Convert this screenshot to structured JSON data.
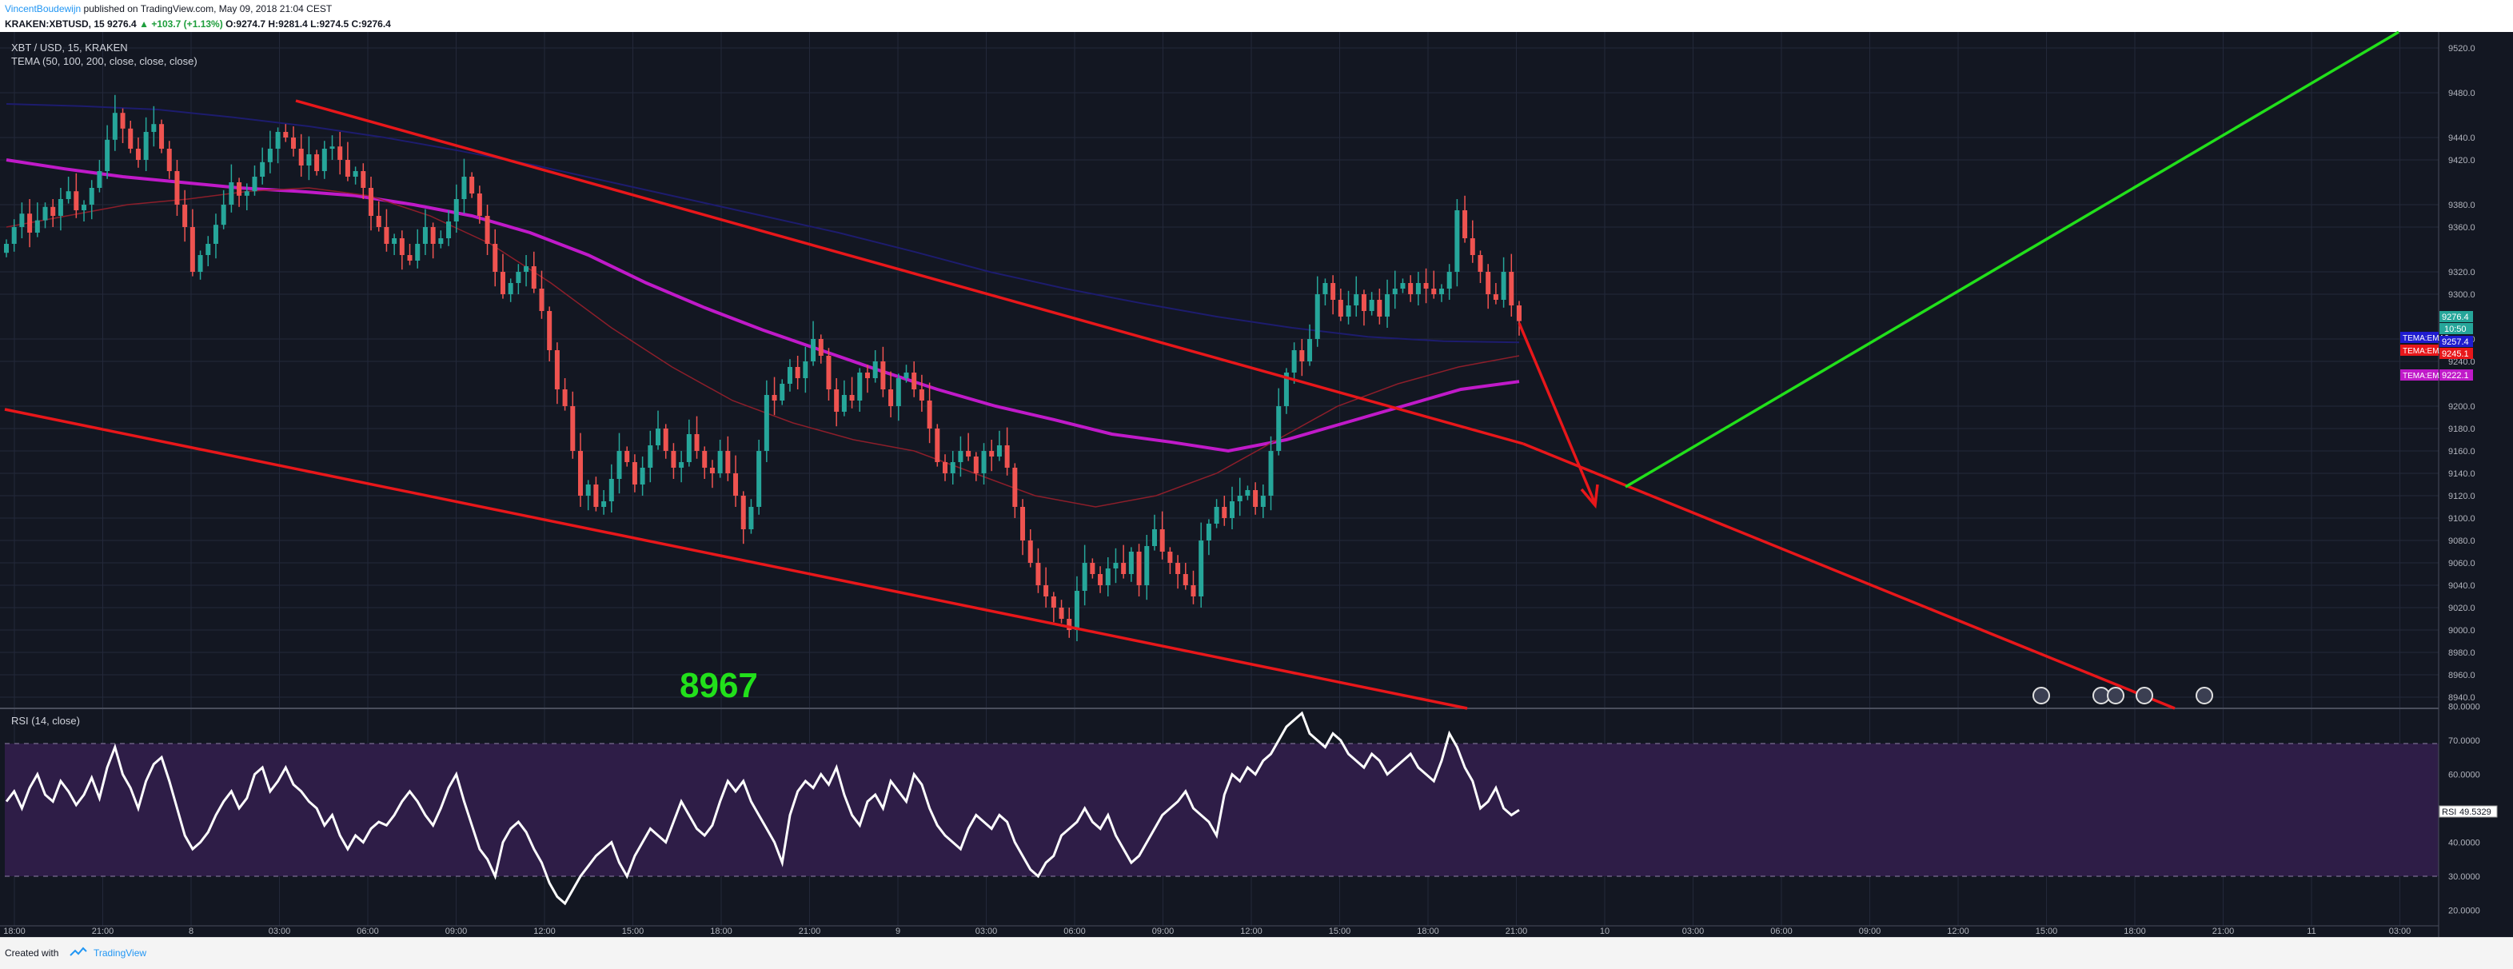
{
  "header": {
    "author": "VincentBoudewijn",
    "published": " published on TradingView.com, May 09, 2018 21:04 CEST",
    "symbol_line": "KRAKEN:XBTUSD, 15",
    "last": "9276.4",
    "change": "+103.7 (+1.13%)",
    "ohlc": "O:9274.7  H:9281.4  L:9274.5  C:9276.4"
  },
  "legend": {
    "symbol": "XBT / USD, 15, KRAKEN",
    "indicator": "TEMA (50, 100, 200, close, close, close)"
  },
  "rsi_legend": "RSI (14, close)",
  "annotation": "8967",
  "price_badges": {
    "last": "9276.4",
    "countdown": "10:50",
    "ema3": "9257.4",
    "ema3_label": "TEMA:EMA3",
    "ema1": "9245.1",
    "ema1_label": "TEMA:EMA",
    "ema2": "9222.1",
    "ema2_label": "TEMA:EMA2",
    "rsi_label": "RSI",
    "rsi_value": "49.5329"
  },
  "footer": {
    "created": "Created with",
    "brand": "TradingView"
  },
  "colors": {
    "background": "#131722",
    "up": "#26a69a",
    "down": "#ef5350",
    "trendline": "#e8171a",
    "green_line": "#22e01b",
    "ema_magenta": "#c01ac9",
    "ema_red": "#8c1e2a",
    "ema_blue": "#1d1c6e",
    "rsi_line": "#ffffff",
    "rsi_band": "#2e1d47"
  },
  "chart_data": {
    "type": "candlestick",
    "y_ticks": [
      "9520.0",
      "9480.0",
      "9440.0",
      "9420.0",
      "9380.0",
      "9360.0",
      "9320.0",
      "9300.0",
      "9260.0",
      "9240.0",
      "9200.0",
      "9180.0",
      "9160.0",
      "9140.0",
      "9120.0",
      "9100.0",
      "9080.0",
      "9060.0",
      "9040.0",
      "9020.0",
      "9000.0",
      "8980.0",
      "8960.0",
      "8940.0"
    ],
    "rsi_ticks": [
      "80.0000",
      "70.0000",
      "60.0000",
      "50.0000",
      "40.0000",
      "30.0000",
      "20.0000"
    ],
    "x_ticks": [
      "18:00",
      "21:00",
      "8",
      "03:00",
      "06:00",
      "09:00",
      "12:00",
      "15:00",
      "18:00",
      "21:00",
      "9",
      "03:00",
      "06:00",
      "09:00",
      "12:00",
      "15:00",
      "18:00",
      "21:00",
      "10",
      "03:00",
      "06:00",
      "09:00",
      "12:00",
      "15:00",
      "18:00",
      "21:00",
      "11",
      "03:00"
    ],
    "closes": [
      9345,
      9360,
      9372,
      9355,
      9366,
      9378,
      9370,
      9385,
      9392,
      9375,
      9380,
      9395,
      9410,
      9438,
      9462,
      9448,
      9430,
      9420,
      9445,
      9452,
      9430,
      9410,
      9380,
      9360,
      9320,
      9335,
      9345,
      9362,
      9380,
      9400,
      9388,
      9392,
      9405,
      9418,
      9430,
      9445,
      9440,
      9430,
      9415,
      9425,
      9410,
      9430,
      9432,
      9420,
      9405,
      9410,
      9395,
      9370,
      9360,
      9345,
      9350,
      9335,
      9330,
      9345,
      9360,
      9345,
      9350,
      9365,
      9385,
      9405,
      9390,
      9370,
      9345,
      9320,
      9300,
      9310,
      9320,
      9325,
      9305,
      9285,
      9250,
      9215,
      9200,
      9160,
      9120,
      9130,
      9110,
      9115,
      9135,
      9160,
      9150,
      9130,
      9145,
      9165,
      9180,
      9160,
      9145,
      9150,
      9175,
      9160,
      9145,
      9140,
      9160,
      9140,
      9120,
      9090,
      9110,
      9160,
      9210,
      9205,
      9220,
      9235,
      9225,
      9240,
      9260,
      9245,
      9215,
      9195,
      9210,
      9205,
      9230,
      9225,
      9240,
      9215,
      9200,
      9225,
      9230,
      9215,
      9205,
      9180,
      9150,
      9140,
      9150,
      9160,
      9155,
      9140,
      9160,
      9155,
      9165,
      9145,
      9110,
      9080,
      9060,
      9040,
      9030,
      9020,
      9010,
      9000,
      9035,
      9060,
      9050,
      9040,
      9055,
      9060,
      9050,
      9070,
      9040,
      9075,
      9090,
      9070,
      9060,
      9050,
      9040,
      9030,
      9080,
      9095,
      9110,
      9100,
      9115,
      9120,
      9125,
      9110,
      9120,
      9160,
      9200,
      9230,
      9250,
      9240,
      9260,
      9300,
      9310,
      9295,
      9280,
      9290,
      9300,
      9285,
      9295,
      9280,
      9300,
      9305,
      9310,
      9300,
      9310,
      9305,
      9300,
      9305,
      9320,
      9375,
      9350,
      9335,
      9320,
      9300,
      9295,
      9320,
      9290,
      9276
    ],
    "series": [
      {
        "name": "TEMA:EMA2",
        "values": [
          9420,
          9412,
          9405,
          9400,
          9395,
          9392,
          9388,
          9380,
          9370,
          9355,
          9335,
          9310,
          9288,
          9268,
          9250,
          9232,
          9215,
          9200,
          9188,
          9175,
          9168,
          9160,
          9170,
          9185,
          9200,
          9215,
          9222
        ]
      },
      {
        "name": "TEMA:EMA",
        "values": [
          9360,
          9370,
          9380,
          9385,
          9392,
          9395,
          9388,
          9370,
          9345,
          9310,
          9270,
          9235,
          9205,
          9185,
          9170,
          9160,
          9140,
          9120,
          9110,
          9120,
          9140,
          9170,
          9200,
          9220,
          9235,
          9245
        ]
      },
      {
        "name": "TEMA:EMA3",
        "values": [
          9470,
          9468,
          9465,
          9458,
          9450,
          9440,
          9428,
          9415,
          9400,
          9385,
          9370,
          9355,
          9338,
          9320,
          9305,
          9292,
          9280,
          9270,
          9262,
          9258,
          9257
        ]
      }
    ],
    "rsi": [
      52,
      55,
      50,
      56,
      60,
      54,
      52,
      58,
      55,
      51,
      54,
      59,
      53,
      62,
      68,
      60,
      56,
      50,
      58,
      63,
      65,
      58,
      50,
      42,
      38,
      40,
      43,
      48,
      52,
      55,
      50,
      53,
      60,
      62,
      55,
      58,
      62,
      57,
      55,
      52,
      50,
      45,
      48,
      42,
      38,
      42,
      40,
      44,
      46,
      45,
      48,
      52,
      55,
      52,
      48,
      45,
      50,
      56,
      60,
      52,
      45,
      38,
      35,
      30,
      40,
      44,
      46,
      43,
      38,
      34,
      28,
      24,
      22,
      26,
      30,
      33,
      36,
      38,
      40,
      34,
      30,
      36,
      40,
      44,
      42,
      40,
      46,
      52,
      48,
      44,
      42,
      45,
      52,
      58,
      55,
      58,
      52,
      48,
      44,
      40,
      34,
      48,
      55,
      58,
      56,
      60,
      57,
      62,
      54,
      48,
      45,
      52,
      54,
      50,
      58,
      55,
      52,
      60,
      57,
      50,
      45,
      42,
      40,
      38,
      44,
      48,
      46,
      44,
      48,
      46,
      40,
      36,
      32,
      30,
      34,
      36,
      42,
      44,
      46,
      50,
      46,
      44,
      48,
      42,
      38,
      34,
      36,
      40,
      44,
      48,
      50,
      52,
      55,
      50,
      48,
      46,
      42,
      54,
      60,
      58,
      62,
      60,
      64,
      66,
      70,
      74,
      76,
      78,
      72,
      70,
      68,
      72,
      70,
      66,
      64,
      62,
      66,
      64,
      60,
      62,
      64,
      66,
      62,
      60,
      58,
      64,
      72,
      68,
      62,
      58,
      50,
      52,
      56,
      50,
      48,
      49.5
    ],
    "annotation_value": 8967
  }
}
